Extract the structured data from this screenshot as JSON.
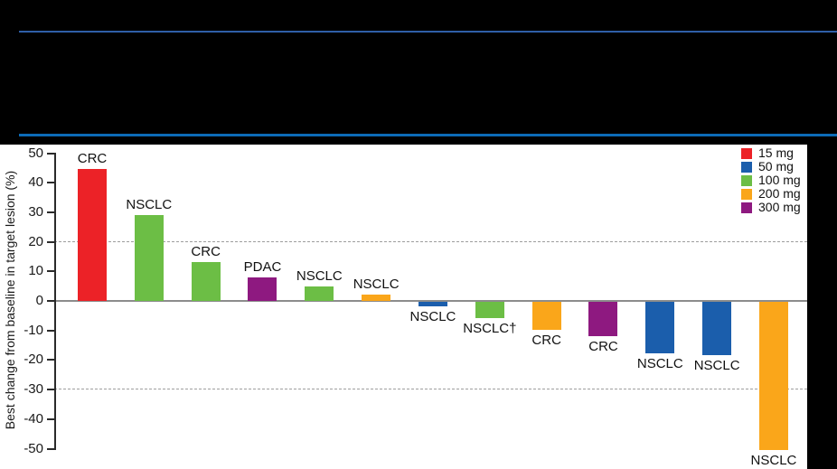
{
  "header": {
    "background": "#000000",
    "rule_top_color": "#2F5FA7",
    "rule_bottom_color": "#0C6BB7"
  },
  "chart_data": {
    "type": "bar",
    "subtype": "waterfall",
    "title": "",
    "xlabel": "",
    "ylabel": "Best change from baseline in target lesion (%)",
    "ylim": [
      -50,
      50
    ],
    "yticks": [
      50,
      40,
      30,
      20,
      10,
      0,
      -10,
      -20,
      -30,
      -40,
      -50
    ],
    "reference_lines": [
      20,
      -30
    ],
    "grid": "off",
    "legend_position": "top-right",
    "legend": [
      {
        "label": "15 mg",
        "color": "#EC2227"
      },
      {
        "label": "50 mg",
        "color": "#1B5EAC"
      },
      {
        "label": "100 mg",
        "color": "#6CBE45"
      },
      {
        "label": "200 mg",
        "color": "#FAA61A"
      },
      {
        "label": "300 mg",
        "color": "#8E1980"
      }
    ],
    "bars": [
      {
        "label": "CRC",
        "dose": "15 mg",
        "value": 44.5
      },
      {
        "label": "NSCLC",
        "dose": "100 mg",
        "value": 29
      },
      {
        "label": "CRC",
        "dose": "100 mg",
        "value": 13
      },
      {
        "label": "PDAC",
        "dose": "300 mg",
        "value": 8
      },
      {
        "label": "NSCLC",
        "dose": "100 mg",
        "value": 5
      },
      {
        "label": "NSCLC",
        "dose": "200 mg",
        "value": 2
      },
      {
        "label": "NSCLC",
        "dose": "50 mg",
        "value": -1.5
      },
      {
        "label": "NSCLC†",
        "dose": "100 mg",
        "value": -5.5
      },
      {
        "label": "CRC",
        "dose": "200 mg",
        "value": -9.5
      },
      {
        "label": "CRC",
        "dose": "300 mg",
        "value": -11.5
      },
      {
        "label": "NSCLC",
        "dose": "50 mg",
        "value": -17.5
      },
      {
        "label": "NSCLC",
        "dose": "50 mg",
        "value": -18
      },
      {
        "label": "NSCLC",
        "dose": "200 mg",
        "value": -50
      }
    ],
    "axis_color": "#2b2b2b",
    "zero_line_color": "#8c8c8c",
    "dashed_line_color": "#9e9e9e"
  }
}
